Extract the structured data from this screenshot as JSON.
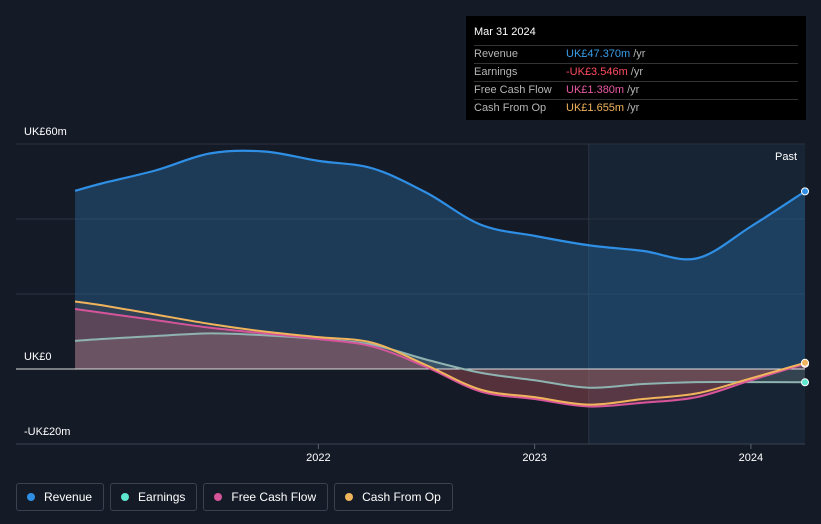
{
  "tooltip": {
    "date": "Mar 31 2024",
    "rows": [
      {
        "label": "Revenue",
        "value": "UK£47.370m",
        "unit": "/yr",
        "color": "#3b9eea"
      },
      {
        "label": "Earnings",
        "value": "-UK£3.546m",
        "unit": "/yr",
        "color": "#ff4d5e"
      },
      {
        "label": "Free Cash Flow",
        "value": "UK£1.380m",
        "unit": "/yr",
        "color": "#e85aa3"
      },
      {
        "label": "Cash From Op",
        "value": "UK£1.655m",
        "unit": "/yr",
        "color": "#f0b45c"
      }
    ]
  },
  "past_label": "Past",
  "legend": [
    {
      "label": "Revenue",
      "color": "#2f8fe5"
    },
    {
      "label": "Earnings",
      "color": "#5ee6cf"
    },
    {
      "label": "Free Cash Flow",
      "color": "#d6559a"
    },
    {
      "label": "Cash From Op",
      "color": "#f0b45c"
    }
  ],
  "chart_data": {
    "type": "line",
    "ylim": [
      -20,
      60
    ],
    "y_tick_labels": [
      "UK£60m",
      "UK£0",
      "-UK£20m"
    ],
    "x_tick_labels": [
      "2022",
      "2023",
      "2024"
    ],
    "x_ticks": [
      2022.0,
      2023.0,
      2024.0
    ],
    "xlim": [
      2020.75,
      2024.25
    ],
    "past_start": 2023.25,
    "series": [
      {
        "name": "Revenue",
        "color": "#2f8fe5",
        "x": [
          2020.875,
          2021.0,
          2021.25,
          2021.5,
          2021.75,
          2022.0,
          2022.25,
          2022.5,
          2022.75,
          2023.0,
          2023.25,
          2023.5,
          2023.75,
          2024.0,
          2024.25
        ],
        "values": [
          47.5,
          49.5,
          53.0,
          57.5,
          58.0,
          55.5,
          53.5,
          47.0,
          38.5,
          35.5,
          33.0,
          31.5,
          29.5,
          38.0,
          47.37
        ]
      },
      {
        "name": "Earnings",
        "color": "#5ee6cf",
        "x": [
          2020.875,
          2021.0,
          2021.25,
          2021.5,
          2021.75,
          2022.0,
          2022.25,
          2022.5,
          2022.75,
          2023.0,
          2023.25,
          2023.5,
          2023.75,
          2024.0,
          2024.25
        ],
        "values": [
          7.5,
          8.0,
          8.8,
          9.5,
          9.0,
          8.0,
          6.5,
          2.5,
          -1.0,
          -3.0,
          -5.0,
          -4.0,
          -3.5,
          -3.5,
          -3.546
        ]
      },
      {
        "name": "Free Cash Flow",
        "color": "#d6559a",
        "x": [
          2020.875,
          2021.0,
          2021.25,
          2021.5,
          2021.75,
          2022.0,
          2022.25,
          2022.5,
          2022.75,
          2023.0,
          2023.25,
          2023.5,
          2023.75,
          2024.0,
          2024.25
        ],
        "values": [
          16.0,
          15.0,
          13.0,
          11.0,
          9.5,
          8.0,
          6.0,
          0.5,
          -6.0,
          -8.0,
          -10.0,
          -9.0,
          -7.5,
          -3.0,
          1.38
        ]
      },
      {
        "name": "Cash From Op",
        "color": "#f0b45c",
        "x": [
          2020.875,
          2021.0,
          2021.25,
          2021.5,
          2021.75,
          2022.0,
          2022.25,
          2022.5,
          2022.75,
          2023.0,
          2023.25,
          2023.5,
          2023.75,
          2024.0,
          2024.25
        ],
        "values": [
          18.0,
          17.0,
          14.5,
          12.0,
          10.0,
          8.5,
          7.0,
          1.0,
          -5.5,
          -7.5,
          -9.5,
          -8.0,
          -6.5,
          -2.5,
          1.655
        ]
      }
    ]
  }
}
